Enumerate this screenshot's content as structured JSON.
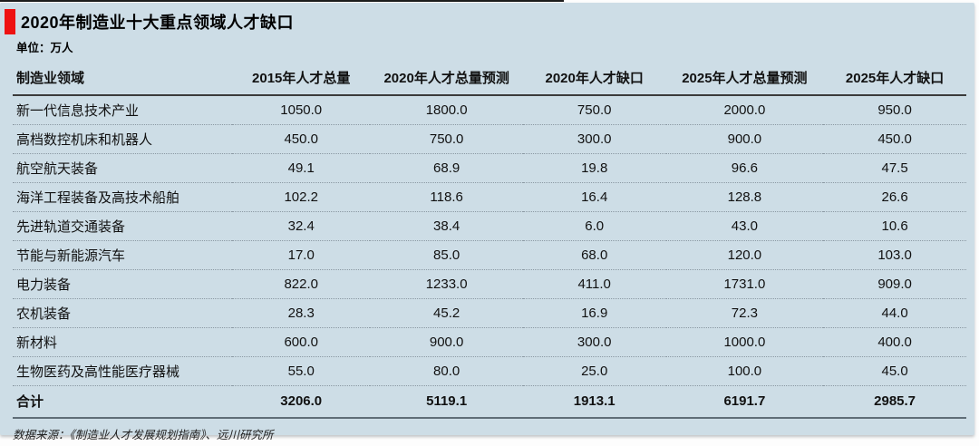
{
  "title": "2020年制造业十大重点领域人才缺口",
  "unit_label": "单位：万人",
  "source": "数据来源：《制造业人才发展规划指南》、远川研究所",
  "colors": {
    "card_bg": "#cdddE6",
    "accent_red": "#ee1111",
    "header_rule": "#3b3b3b",
    "row_rule_dotted": "#8b99a3",
    "total_rule": "#5f6d77"
  },
  "chart_data": {
    "type": "table",
    "title": "2020年制造业十大重点领域人才缺口",
    "unit": "万人",
    "columns": [
      "制造业领域",
      "2015年人才总量",
      "2020年人才总量预测",
      "2020年人才缺口",
      "2025年人才总量预测",
      "2025年人才缺口"
    ],
    "rows": [
      [
        "新一代信息技术产业",
        "1050.0",
        "1800.0",
        "750.0",
        "2000.0",
        "950.0"
      ],
      [
        "高档数控机床和机器人",
        "450.0",
        "750.0",
        "300.0",
        "900.0",
        "450.0"
      ],
      [
        "航空航天装备",
        "49.1",
        "68.9",
        "19.8",
        "96.6",
        "47.5"
      ],
      [
        "海洋工程装备及高技术船舶",
        "102.2",
        "118.6",
        "16.4",
        "128.8",
        "26.6"
      ],
      [
        "先进轨道交通装备",
        "32.4",
        "38.4",
        "6.0",
        "43.0",
        "10.6"
      ],
      [
        "节能与新能源汽车",
        "17.0",
        "85.0",
        "68.0",
        "120.0",
        "103.0"
      ],
      [
        "电力装备",
        "822.0",
        "1233.0",
        "411.0",
        "1731.0",
        "909.0"
      ],
      [
        "农机装备",
        "28.3",
        "45.2",
        "16.9",
        "72.3",
        "44.0"
      ],
      [
        "新材料",
        "600.0",
        "900.0",
        "300.0",
        "1000.0",
        "400.0"
      ],
      [
        "生物医药及高性能医疗器械",
        "55.0",
        "80.0",
        "25.0",
        "100.0",
        "45.0"
      ]
    ],
    "total_row": [
      "合计",
      "3206.0",
      "5119.1",
      "1913.1",
      "6191.7",
      "2985.7"
    ]
  }
}
